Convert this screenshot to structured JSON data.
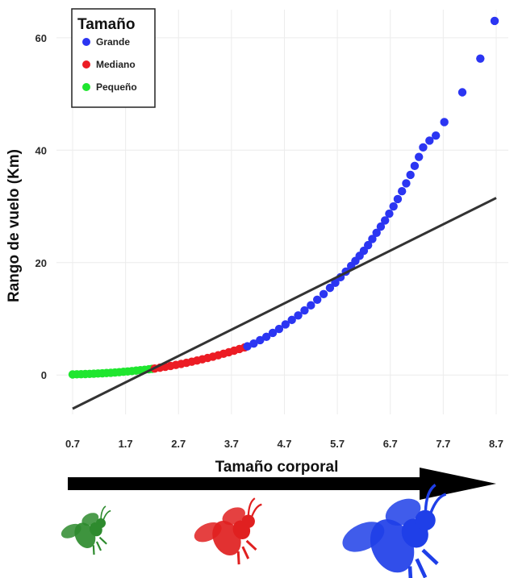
{
  "chart_data": {
    "type": "scatter",
    "title": "",
    "xlabel": "Tamaño corporal",
    "ylabel": "Rango de vuelo (Km)",
    "x_ticks": [
      "0.7",
      "1.7",
      "2.7",
      "3.7",
      "4.7",
      "5.7",
      "6.7",
      "7.7",
      "8.7"
    ],
    "y_ticks": [
      0,
      20,
      40,
      60
    ],
    "xlim": [
      0.7,
      8.7
    ],
    "ylim": [
      -7,
      65
    ],
    "grid": true,
    "legend": {
      "title": "Tamaño",
      "position": "top-left",
      "entries": [
        {
          "label": "Grande",
          "color": "#2b35f2"
        },
        {
          "label": "Mediano",
          "color": "#ec1c24"
        },
        {
          "label": "Pequeño",
          "color": "#1fe62f"
        }
      ]
    },
    "series": [
      {
        "name": "Pequeño",
        "color": "#1fe62f",
        "x": [
          0.7,
          0.78,
          0.86,
          0.94,
          1.02,
          1.1,
          1.18,
          1.26,
          1.34,
          1.42,
          1.5,
          1.58,
          1.66,
          1.74,
          1.82,
          1.9,
          1.98,
          2.06,
          2.14,
          2.2
        ],
        "y": [
          0.1,
          0.12,
          0.14,
          0.17,
          0.2,
          0.23,
          0.27,
          0.31,
          0.35,
          0.4,
          0.45,
          0.51,
          0.57,
          0.63,
          0.7,
          0.78,
          0.86,
          0.94,
          1.03,
          1.1
        ]
      },
      {
        "name": "Mediano",
        "color": "#ec1c24",
        "x": [
          2.25,
          2.35,
          2.45,
          2.55,
          2.65,
          2.75,
          2.85,
          2.95,
          3.05,
          3.15,
          3.25,
          3.35,
          3.45,
          3.55,
          3.65,
          3.75,
          3.85,
          3.95
        ],
        "y": [
          1.15,
          1.3,
          1.45,
          1.62,
          1.8,
          1.98,
          2.17,
          2.37,
          2.58,
          2.8,
          3.03,
          3.27,
          3.52,
          3.78,
          4.05,
          4.33,
          4.62,
          4.92
        ]
      },
      {
        "name": "Grande",
        "color": "#2b35f2",
        "x": [
          4.0,
          4.12,
          4.24,
          4.36,
          4.48,
          4.6,
          4.72,
          4.84,
          4.96,
          5.08,
          5.2,
          5.32,
          5.44,
          5.56,
          5.66,
          5.76,
          5.86,
          5.96,
          6.04,
          6.12,
          6.2,
          6.28,
          6.36,
          6.44,
          6.52,
          6.6,
          6.68,
          6.76,
          6.84,
          6.92,
          7.0,
          7.08,
          7.16,
          7.24,
          7.32,
          7.44,
          7.56,
          7.72,
          8.06,
          8.4,
          8.67
        ],
        "y": [
          5.1,
          5.6,
          6.2,
          6.8,
          7.5,
          8.2,
          9.0,
          9.8,
          10.6,
          11.5,
          12.4,
          13.4,
          14.4,
          15.5,
          16.4,
          17.4,
          18.4,
          19.4,
          20.3,
          21.2,
          22.1,
          23.1,
          24.2,
          25.3,
          26.4,
          27.5,
          28.7,
          30.0,
          31.3,
          32.7,
          34.1,
          35.6,
          37.2,
          38.8,
          40.5,
          41.7,
          42.6,
          45.0,
          50.3,
          56.3,
          63.0
        ]
      }
    ],
    "fit_line": {
      "x": [
        0.7,
        8.7
      ],
      "y": [
        -6.0,
        31.5
      ],
      "color": "#333333"
    }
  },
  "annotation": {
    "arrow_label": "Tamaño corporal",
    "silhouettes": [
      {
        "icon": "bee-icon",
        "size": "small",
        "color": "#2e8b2e"
      },
      {
        "icon": "bee-icon",
        "size": "medium",
        "color": "#e02020"
      },
      {
        "icon": "bee-icon",
        "size": "large",
        "color": "#1f3fe8"
      }
    ]
  }
}
